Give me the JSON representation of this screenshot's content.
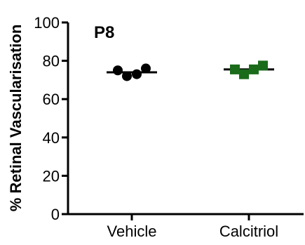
{
  "chart_data": {
    "type": "scatter",
    "title": "",
    "annotation": "P8",
    "xlabel": "",
    "ylabel": "% Retinal Vascularisation",
    "ylim": [
      0,
      100
    ],
    "yticks": [
      "0",
      "20",
      "40",
      "60",
      "80",
      "100"
    ],
    "categories": [
      "Vehicle",
      "Calcitriol"
    ],
    "grid": false,
    "series": [
      {
        "category": "Vehicle",
        "marker": "circle",
        "color": "#000000",
        "values": [
          75,
          72,
          73,
          76
        ],
        "mean": 74
      },
      {
        "category": "Calcitriol",
        "marker": "square",
        "color": "#1a6b1a",
        "values": [
          75.5,
          73,
          75.5,
          77.5
        ],
        "mean": 75.5
      }
    ]
  }
}
